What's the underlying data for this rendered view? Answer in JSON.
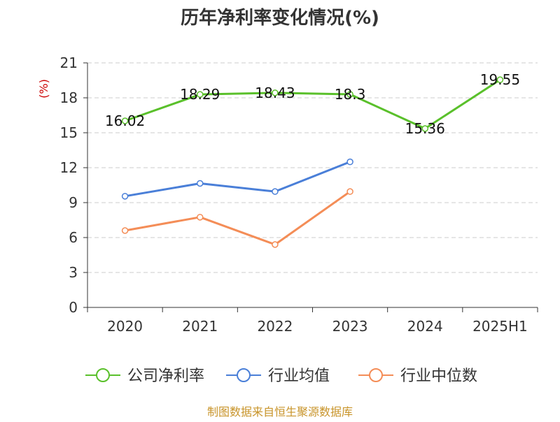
{
  "chart_data": {
    "type": "line",
    "title": "历年净利率变化情况(%)",
    "ylabel": "(%)",
    "xlabel": "",
    "categories": [
      "2020",
      "2021",
      "2022",
      "2023",
      "2024",
      "2025H1"
    ],
    "ylim": [
      0,
      21
    ],
    "yticks": [
      0,
      3,
      6,
      9,
      12,
      15,
      18,
      21
    ],
    "grid": "horizontal dashed",
    "legend_position": "bottom",
    "series": [
      {
        "name": "公司净利率",
        "color": "#5ac02b",
        "values": [
          16.02,
          18.29,
          18.43,
          18.3,
          15.36,
          19.55
        ],
        "data_labels": [
          "16.02",
          "18.29",
          "18.43",
          "18.3",
          "15.36",
          "19.55"
        ]
      },
      {
        "name": "行业均值",
        "color": "#4a7fd8",
        "values": [
          9.55,
          10.65,
          9.95,
          12.5,
          null,
          null
        ]
      },
      {
        "name": "行业中位数",
        "color": "#f48d57",
        "values": [
          6.6,
          7.75,
          5.4,
          9.95,
          null,
          null
        ]
      }
    ]
  },
  "source_note": "制图数据来自恒生聚源数据库",
  "colors": {
    "title": "#333333",
    "axis_text": "#333333",
    "ylabel": "#cc0000",
    "grid": "#cccccc",
    "axis": "#333333",
    "source": "#c8942a"
  }
}
